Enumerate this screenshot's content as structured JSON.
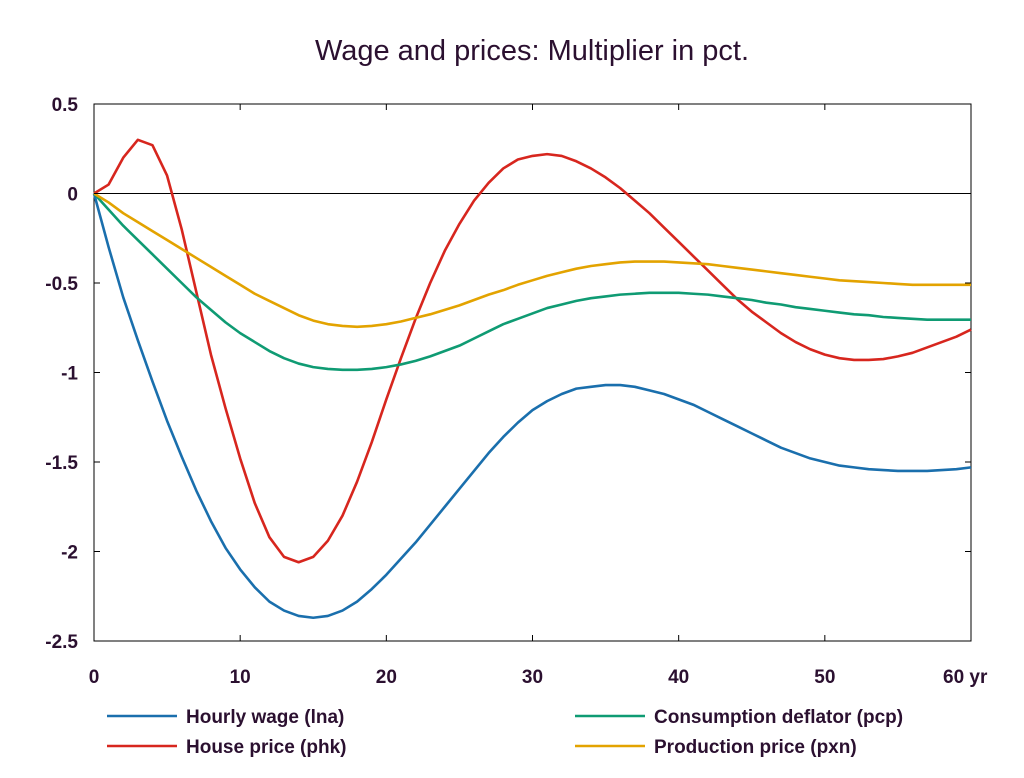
{
  "chart_data": {
    "type": "line",
    "title": "Wage and prices: Multiplier in pct.",
    "xlabel": "",
    "ylabel": "",
    "x_unit_label": "yr",
    "xlim": [
      0,
      60
    ],
    "ylim": [
      -2.5,
      0.5
    ],
    "x_ticks": [
      0,
      10,
      20,
      30,
      40,
      50,
      60
    ],
    "x_tick_labels": [
      "0",
      "10",
      "20",
      "30",
      "40",
      "50",
      "60 yr"
    ],
    "y_ticks": [
      0.5,
      0,
      -0.5,
      -1,
      -1.5,
      -2,
      -2.5
    ],
    "y_tick_labels": [
      "0.5",
      "0",
      "-0.5",
      "-1",
      "-1.5",
      "-2",
      "-2.5"
    ],
    "grid": false,
    "zero_line": true,
    "legend_position": "bottom",
    "x": [
      0,
      1,
      2,
      3,
      4,
      5,
      6,
      7,
      8,
      9,
      10,
      11,
      12,
      13,
      14,
      15,
      16,
      17,
      18,
      19,
      20,
      21,
      22,
      23,
      24,
      25,
      26,
      27,
      28,
      29,
      30,
      31,
      32,
      33,
      34,
      35,
      36,
      37,
      38,
      39,
      40,
      41,
      42,
      43,
      44,
      45,
      46,
      47,
      48,
      49,
      50,
      51,
      52,
      53,
      54,
      55,
      56,
      57,
      58,
      59,
      60
    ],
    "series": [
      {
        "name": "Hourly wage (lna)",
        "color": "#1a6fad",
        "values": [
          0,
          -0.3,
          -0.58,
          -0.82,
          -1.05,
          -1.27,
          -1.47,
          -1.66,
          -1.83,
          -1.98,
          -2.1,
          -2.2,
          -2.28,
          -2.33,
          -2.36,
          -2.37,
          -2.36,
          -2.33,
          -2.28,
          -2.21,
          -2.13,
          -2.04,
          -1.95,
          -1.85,
          -1.75,
          -1.65,
          -1.55,
          -1.45,
          -1.36,
          -1.28,
          -1.21,
          -1.16,
          -1.12,
          -1.09,
          -1.08,
          -1.07,
          -1.07,
          -1.08,
          -1.1,
          -1.12,
          -1.15,
          -1.18,
          -1.22,
          -1.26,
          -1.3,
          -1.34,
          -1.38,
          -1.42,
          -1.45,
          -1.48,
          -1.5,
          -1.52,
          -1.53,
          -1.54,
          -1.545,
          -1.55,
          -1.55,
          -1.55,
          -1.545,
          -1.54,
          -1.53
        ]
      },
      {
        "name": "House price (phk)",
        "color": "#d7261e",
        "values": [
          0,
          0.05,
          0.2,
          0.3,
          0.27,
          0.1,
          -0.2,
          -0.55,
          -0.9,
          -1.2,
          -1.48,
          -1.73,
          -1.92,
          -2.03,
          -2.06,
          -2.03,
          -1.94,
          -1.8,
          -1.61,
          -1.39,
          -1.15,
          -0.92,
          -0.7,
          -0.5,
          -0.32,
          -0.17,
          -0.04,
          0.06,
          0.14,
          0.19,
          0.21,
          0.22,
          0.21,
          0.18,
          0.14,
          0.09,
          0.03,
          -0.04,
          -0.11,
          -0.19,
          -0.27,
          -0.35,
          -0.43,
          -0.51,
          -0.59,
          -0.66,
          -0.72,
          -0.78,
          -0.83,
          -0.87,
          -0.9,
          -0.92,
          -0.93,
          -0.93,
          -0.925,
          -0.91,
          -0.89,
          -0.86,
          -0.83,
          -0.8,
          -0.76
        ]
      },
      {
        "name": "Consumption deflator (pcp)",
        "color": "#0f9b73",
        "values": [
          0,
          -0.09,
          -0.18,
          -0.26,
          -0.34,
          -0.42,
          -0.5,
          -0.58,
          -0.65,
          -0.72,
          -0.78,
          -0.83,
          -0.88,
          -0.92,
          -0.95,
          -0.97,
          -0.98,
          -0.985,
          -0.985,
          -0.98,
          -0.97,
          -0.955,
          -0.935,
          -0.91,
          -0.88,
          -0.85,
          -0.81,
          -0.77,
          -0.73,
          -0.7,
          -0.67,
          -0.64,
          -0.62,
          -0.6,
          -0.585,
          -0.575,
          -0.565,
          -0.56,
          -0.555,
          -0.555,
          -0.555,
          -0.56,
          -0.565,
          -0.575,
          -0.585,
          -0.595,
          -0.61,
          -0.62,
          -0.635,
          -0.645,
          -0.655,
          -0.665,
          -0.675,
          -0.68,
          -0.69,
          -0.695,
          -0.7,
          -0.705,
          -0.705,
          -0.705,
          -0.705
        ]
      },
      {
        "name": "Production price (pxn)",
        "color": "#e3a300",
        "values": [
          0,
          -0.05,
          -0.11,
          -0.16,
          -0.21,
          -0.26,
          -0.31,
          -0.36,
          -0.41,
          -0.46,
          -0.51,
          -0.56,
          -0.6,
          -0.64,
          -0.68,
          -0.71,
          -0.73,
          -0.74,
          -0.745,
          -0.74,
          -0.73,
          -0.715,
          -0.695,
          -0.675,
          -0.65,
          -0.625,
          -0.595,
          -0.565,
          -0.54,
          -0.51,
          -0.485,
          -0.46,
          -0.44,
          -0.42,
          -0.405,
          -0.395,
          -0.385,
          -0.38,
          -0.38,
          -0.38,
          -0.385,
          -0.39,
          -0.395,
          -0.405,
          -0.415,
          -0.425,
          -0.435,
          -0.445,
          -0.455,
          -0.465,
          -0.475,
          -0.485,
          -0.49,
          -0.495,
          -0.5,
          -0.505,
          -0.51,
          -0.51,
          -0.51,
          -0.51,
          -0.51
        ]
      }
    ]
  }
}
